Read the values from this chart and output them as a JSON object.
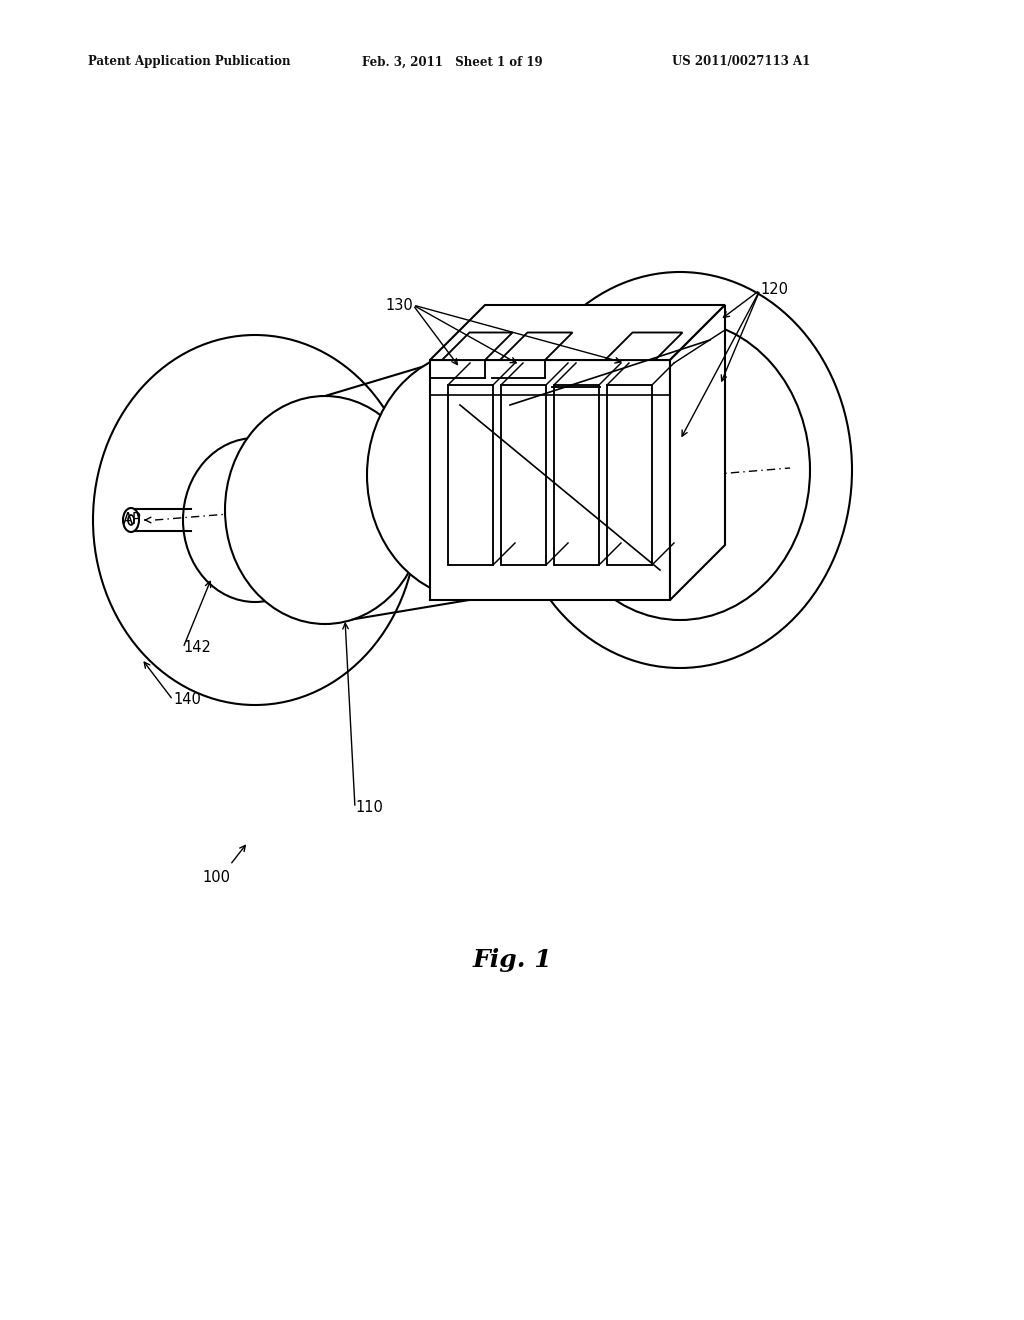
{
  "background_color": "#ffffff",
  "header_left": "Patent Application Publication",
  "header_center": "Feb. 3, 2011   Sheet 1 of 19",
  "header_right": "US 2011/0027113 A1",
  "figure_label": "Fig. 1",
  "line_color": "#000000",
  "line_width": 1.5
}
